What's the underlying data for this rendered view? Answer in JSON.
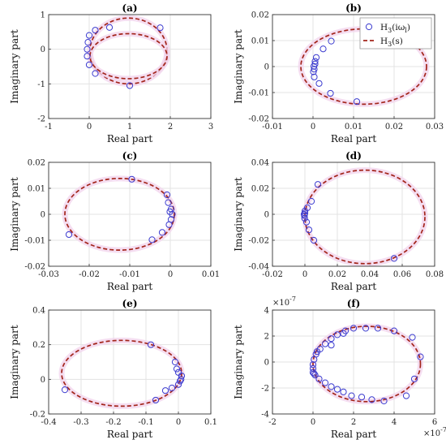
{
  "chart_data": [
    {
      "id": "a",
      "type": "scatter",
      "title": "(a)",
      "xlabel": "Real part",
      "ylabel": "Imaginary part",
      "xlim": [
        -1,
        3
      ],
      "ylim": [
        -2,
        1
      ],
      "xticks": [
        "-1",
        "0",
        "1",
        "2",
        "3"
      ],
      "yticks": [
        "-2",
        "-1",
        "0",
        "1"
      ],
      "grid": true,
      "points": [
        [
          -0.05,
          0.0
        ],
        [
          -0.03,
          0.2
        ],
        [
          0.0,
          0.4
        ],
        [
          0.15,
          0.55
        ],
        [
          0.5,
          0.63
        ],
        [
          1.75,
          0.62
        ],
        [
          -0.05,
          -0.2
        ],
        [
          0.0,
          -0.45
        ],
        [
          0.15,
          -0.7
        ],
        [
          1.0,
          -1.05
        ]
      ],
      "curve_center": [
        0.97,
        -0.05
      ],
      "curve_radii": [
        0.95,
        0.95
      ],
      "curve2_center": [
        0.97,
        -0.2
      ],
      "curve2_radii": [
        0.95,
        0.65
      ]
    },
    {
      "id": "b",
      "type": "scatter",
      "title": "(b)",
      "xlabel": "Real part",
      "ylabel": "Imaginary part",
      "xlim": [
        -0.01,
        0.03
      ],
      "ylim": [
        -0.02,
        0.02
      ],
      "xticks": [
        "-0.01",
        "0",
        "0.01",
        "0.02",
        "0.03"
      ],
      "yticks": [
        "-0.02",
        "-0.01",
        "0",
        "0.01",
        "0.02"
      ],
      "grid": true,
      "points": [
        [
          0.0002,
          0.0001
        ],
        [
          0.0005,
          0.002
        ],
        [
          0.0008,
          0.0035
        ],
        [
          0.0025,
          0.0068
        ],
        [
          0.0045,
          0.0098
        ],
        [
          0.0001,
          -0.002
        ],
        [
          0.0003,
          -0.004
        ],
        [
          0.0015,
          -0.0065
        ],
        [
          0.0043,
          -0.0103
        ],
        [
          0.0108,
          -0.0135
        ],
        [
          0.0005,
          0.001
        ],
        [
          0.0003,
          -0.001
        ]
      ],
      "curve_center": [
        0.0125,
        0.0
      ],
      "curve_radii": [
        0.0155,
        0.0145
      ],
      "legend": {
        "position": "top-right",
        "entries": [
          "H3(iωl)",
          "H3(s)"
        ],
        "entry_main": [
          "H",
          "H"
        ],
        "entry_sub": [
          "3",
          "3"
        ],
        "entry_tail": [
          "(iω",
          "(s)"
        ],
        "entry_tail_sub": [
          "l",
          ""
        ],
        "entry_close": [
          ")",
          ""
        ]
      }
    },
    {
      "id": "c",
      "type": "scatter",
      "title": "(c)",
      "xlabel": "Real part",
      "ylabel": "Imaginary part",
      "xlim": [
        -0.03,
        0.01
      ],
      "ylim": [
        -0.02,
        0.02
      ],
      "xticks": [
        "-0.03",
        "-0.02",
        "-0.01",
        "0",
        "0.01"
      ],
      "yticks": [
        "-0.02",
        "-0.01",
        "0",
        "0.01",
        "0.02"
      ],
      "grid": true,
      "points": [
        [
          0.0005,
          0.0
        ],
        [
          0.0002,
          0.002
        ],
        [
          -0.0005,
          0.0045
        ],
        [
          -0.0008,
          0.0075
        ],
        [
          -0.0095,
          0.0135
        ],
        [
          0.0002,
          -0.002
        ],
        [
          -0.0003,
          -0.004
        ],
        [
          -0.002,
          -0.007
        ],
        [
          -0.0045,
          -0.0098
        ],
        [
          -0.025,
          -0.0078
        ],
        [
          -0.0001,
          0.001
        ]
      ],
      "curve_center": [
        -0.0125,
        0.0
      ],
      "curve_radii": [
        0.0135,
        0.0138
      ]
    },
    {
      "id": "d",
      "type": "scatter",
      "title": "(d)",
      "xlabel": "Real part",
      "ylabel": "Imaginary part",
      "xlim": [
        -0.02,
        0.08
      ],
      "ylim": [
        -0.04,
        0.04
      ],
      "xticks": [
        "-0.02",
        "0",
        "0.02",
        "0.04",
        "0.06",
        "0.08"
      ],
      "yticks": [
        "-0.04",
        "-0.02",
        "0",
        "0.02",
        "0.04"
      ],
      "grid": true,
      "points": [
        [
          -0.0005,
          0.0
        ],
        [
          0.0,
          0.0025
        ],
        [
          0.0015,
          0.005
        ],
        [
          0.004,
          0.01
        ],
        [
          0.008,
          0.023
        ],
        [
          -0.0002,
          -0.003
        ],
        [
          0.001,
          -0.006
        ],
        [
          0.0025,
          -0.012
        ],
        [
          0.0055,
          -0.02
        ],
        [
          0.055,
          -0.034
        ],
        [
          0.0,
          0.001
        ],
        [
          -0.0003,
          -0.001
        ]
      ],
      "curve_center": [
        0.037,
        -0.002
      ],
      "curve_radii": [
        0.037,
        0.036
      ]
    },
    {
      "id": "e",
      "type": "scatter",
      "title": "(e)",
      "xlabel": "Real part",
      "ylabel": "Imaginary part",
      "xlim": [
        -0.4,
        0.1
      ],
      "ylim": [
        -0.2,
        0.4
      ],
      "xticks": [
        "-0.4",
        "-0.3",
        "-0.2",
        "-0.1",
        "0",
        "0.1"
      ],
      "yticks": [
        "-0.2",
        "0",
        "0.2",
        "0.4"
      ],
      "grid": true,
      "points": [
        [
          0.01,
          0.02
        ],
        [
          0.0,
          0.04
        ],
        [
          -0.005,
          0.06
        ],
        [
          -0.01,
          0.1
        ],
        [
          -0.085,
          0.2
        ],
        [
          0.005,
          -0.01
        ],
        [
          0.0,
          -0.03
        ],
        [
          -0.02,
          -0.05
        ],
        [
          -0.04,
          -0.065
        ],
        [
          -0.07,
          -0.12
        ],
        [
          -0.35,
          -0.06
        ],
        [
          0.008,
          0.0
        ]
      ],
      "curve_center": [
        -0.175,
        0.035
      ],
      "curve_radii": [
        0.185,
        0.19
      ]
    },
    {
      "id": "f",
      "type": "scatter",
      "title": "(f)",
      "xlabel": "Real part",
      "ylabel": "Imaginary part",
      "xlim": [
        -2,
        6
      ],
      "ylim": [
        -4,
        4
      ],
      "xticks": [
        "-2",
        "0",
        "2",
        "4",
        "6"
      ],
      "yticks": [
        "-4",
        "-2",
        "0",
        "2",
        "4"
      ],
      "x_exponent": "×10",
      "x_exponent_power": "-7",
      "y_exponent": "×10",
      "y_exponent_power": "-7",
      "grid": true,
      "points": [
        [
          0.0,
          -0.8
        ],
        [
          0.1,
          -1.0
        ],
        [
          0.3,
          -1.3
        ],
        [
          0.6,
          -1.6
        ],
        [
          0.9,
          -1.9
        ],
        [
          1.2,
          -2.1
        ],
        [
          1.5,
          -2.3
        ],
        [
          1.9,
          -2.6
        ],
        [
          2.4,
          -2.7
        ],
        [
          2.9,
          -2.9
        ],
        [
          3.5,
          -3.0
        ],
        [
          4.6,
          -2.6
        ],
        [
          5.0,
          -1.3
        ],
        [
          5.3,
          0.4
        ],
        [
          4.9,
          1.9
        ],
        [
          4.0,
          2.4
        ],
        [
          3.2,
          2.6
        ],
        [
          2.6,
          2.6
        ],
        [
          2.0,
          2.6
        ],
        [
          1.6,
          2.4
        ],
        [
          1.2,
          2.1
        ],
        [
          0.9,
          1.8
        ],
        [
          0.6,
          1.4
        ],
        [
          0.35,
          1.0
        ],
        [
          0.15,
          0.6
        ],
        [
          0.05,
          0.2
        ],
        [
          0.0,
          -0.2
        ],
        [
          0.0,
          -0.5
        ],
        [
          0.05,
          -0.9
        ],
        [
          1.5,
          2.2
        ],
        [
          0.2,
          0.8
        ],
        [
          0.9,
          1.3
        ]
      ],
      "curve_center": [
        2.65,
        -0.15
      ],
      "curve_radii": [
        2.65,
        2.9
      ]
    }
  ],
  "colors": {
    "marker": "#3b3bcf",
    "curve": "#a3251b",
    "halo": "#f3d6ee",
    "grid": "#e3e3e3",
    "axis": "#333333"
  }
}
